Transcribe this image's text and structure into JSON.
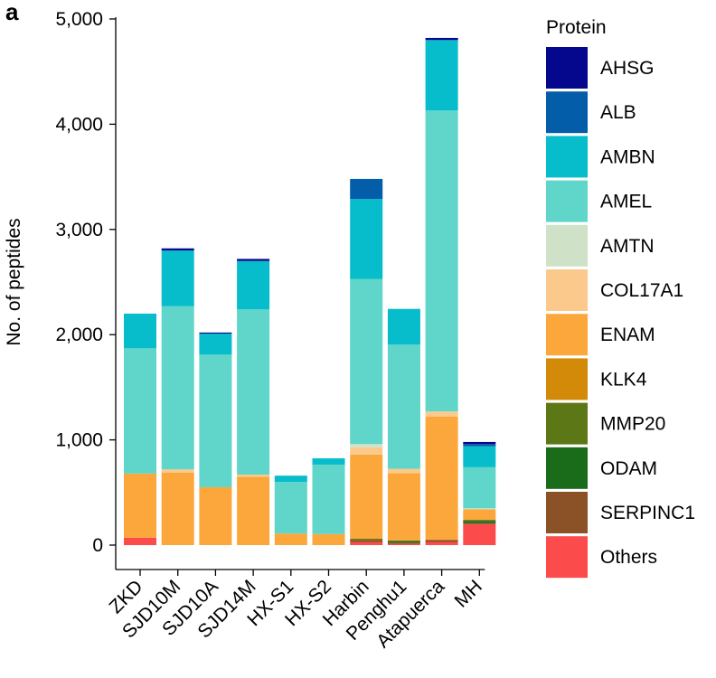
{
  "panel_label": "a",
  "chart_data": {
    "type": "bar",
    "stacked": true,
    "ylabel": "No. of peptides",
    "xlabel": "",
    "ylim": [
      0,
      5000
    ],
    "yticks": [
      0,
      1000,
      2000,
      3000,
      4000,
      5000
    ],
    "ytick_labels": [
      "0",
      "1,000",
      "2,000",
      "3,000",
      "4,000",
      "5,000"
    ],
    "grid": false,
    "legend_title": "Protein",
    "legend_position": "right",
    "categories": [
      "ZKD",
      "SJD10M",
      "SJD10A",
      "SJD14M",
      "HX-S1",
      "HX-S2",
      "Harbin",
      "Penghu1",
      "Atapuerca",
      "MH"
    ],
    "series": [
      {
        "name": "Others",
        "color": "#fb4b4b",
        "values": [
          70,
          0,
          0,
          0,
          0,
          0,
          30,
          10,
          30,
          200
        ]
      },
      {
        "name": "SERPINC1",
        "color": "#8c5227",
        "values": [
          0,
          0,
          0,
          0,
          0,
          0,
          20,
          15,
          20,
          10
        ]
      },
      {
        "name": "ODAM",
        "color": "#1a6b1a",
        "values": [
          0,
          0,
          0,
          0,
          0,
          0,
          0,
          5,
          0,
          20
        ]
      },
      {
        "name": "MMP20",
        "color": "#5c7715",
        "values": [
          0,
          0,
          0,
          0,
          0,
          0,
          10,
          15,
          0,
          10
        ]
      },
      {
        "name": "KLK4",
        "color": "#d28a08",
        "values": [
          0,
          0,
          0,
          0,
          0,
          0,
          0,
          0,
          0,
          0
        ]
      },
      {
        "name": "ENAM",
        "color": "#fca73b",
        "values": [
          610,
          690,
          550,
          650,
          110,
          105,
          800,
          640,
          1170,
          100
        ]
      },
      {
        "name": "COL17A1",
        "color": "#fcc98c",
        "values": [
          0,
          30,
          0,
          20,
          0,
          0,
          70,
          40,
          50,
          0
        ]
      },
      {
        "name": "AMTN",
        "color": "#cfe2c7",
        "values": [
          0,
          0,
          0,
          0,
          0,
          0,
          30,
          0,
          0,
          10
        ]
      },
      {
        "name": "AMEL",
        "color": "#5fd6c9",
        "values": [
          1190,
          1550,
          1260,
          1570,
          490,
          660,
          1570,
          1180,
          2860,
          390
        ]
      },
      {
        "name": "AMBN",
        "color": "#07bccb",
        "values": [
          330,
          530,
          200,
          460,
          60,
          60,
          760,
          340,
          670,
          200
        ]
      },
      {
        "name": "ALB",
        "color": "#045da8",
        "values": [
          0,
          0,
          0,
          0,
          0,
          0,
          190,
          0,
          0,
          20
        ]
      },
      {
        "name": "AHSG",
        "color": "#05078c",
        "values": [
          0,
          20,
          10,
          20,
          0,
          0,
          0,
          0,
          20,
          20
        ]
      }
    ]
  }
}
